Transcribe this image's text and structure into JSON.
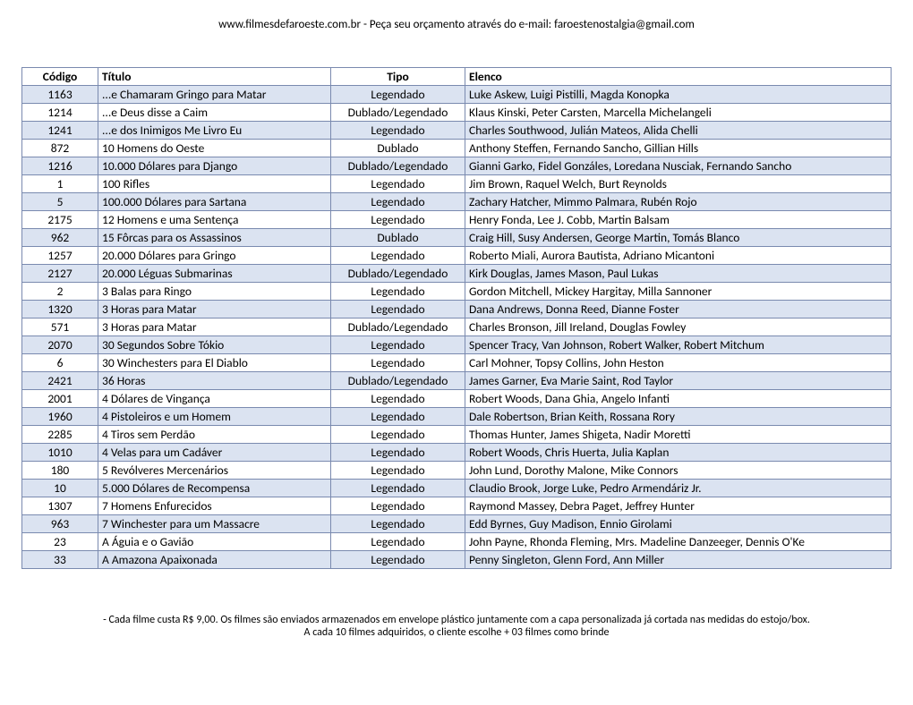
{
  "header": "www.filmesdefaroeste.com.br - Peça seu orçamento através do e-mail: faroestenostalgia@gmail.com",
  "columns": [
    "Código",
    "Título",
    "Tipo",
    "Elenco"
  ],
  "col_classes": [
    "col-codigo",
    "col-titulo",
    "col-tipo",
    "col-elenco"
  ],
  "row_colors": {
    "odd": "#dbe3f1",
    "even": "#ffffff"
  },
  "border_color": "#7a8aaf",
  "font_family": "Calibri",
  "rows": [
    [
      "1163",
      "...e Chamaram Gringo para Matar",
      "Legendado",
      "Luke Askew, Luigi Pistilli, Magda Konopka"
    ],
    [
      "1214",
      "...e Deus disse a Caim",
      "Dublado/Legendado",
      "Klaus Kinski, Peter Carsten, Marcella Michelangeli"
    ],
    [
      "1241",
      "...e dos Inimigos Me Livro Eu",
      "Legendado",
      "Charles Southwood, Julián Mateos, Alida Chelli"
    ],
    [
      "872",
      "10 Homens do Oeste",
      "Dublado",
      "Anthony Steffen, Fernando Sancho, Gillian Hills"
    ],
    [
      "1216",
      "10.000 Dólares para Django",
      "Dublado/Legendado",
      "Gianni Garko, Fidel Gonzáles, Loredana Nusciak, Fernando Sancho"
    ],
    [
      "1",
      "100 Rifles",
      "Legendado",
      "Jim Brown, Raquel Welch, Burt Reynolds"
    ],
    [
      "5",
      "100.000 Dólares para Sartana",
      "Legendado",
      "Zachary Hatcher, Mimmo Palmara, Rubén Rojo"
    ],
    [
      "2175",
      "12 Homens e uma Sentença",
      "Legendado",
      "Henry Fonda, Lee J. Cobb, Martin Balsam"
    ],
    [
      "962",
      "15 Fôrcas para os Assassinos",
      "Dublado",
      "Craig Hill, Susy Andersen, George Martin, Tomás Blanco"
    ],
    [
      "1257",
      "20.000 Dólares para Gringo",
      "Legendado",
      "Roberto Miali, Aurora Bautista, Adriano Micantoni"
    ],
    [
      "2127",
      "20.000 Léguas Submarinas",
      "Dublado/Legendado",
      "Kirk Douglas, James Mason, Paul Lukas"
    ],
    [
      "2",
      "3 Balas para Ringo",
      "Legendado",
      "Gordon Mitchell, Mickey Hargitay, Milla Sannoner"
    ],
    [
      "1320",
      "3 Horas para Matar",
      "Legendado",
      "Dana Andrews, Donna Reed, Dianne Foster"
    ],
    [
      "571",
      "3 Horas para Matar",
      "Dublado/Legendado",
      "Charles Bronson, Jill Ireland, Douglas Fowley"
    ],
    [
      "2070",
      "30 Segundos Sobre Tókio",
      "Legendado",
      "Spencer Tracy, Van Johnson, Robert Walker, Robert Mitchum"
    ],
    [
      "6",
      "30 Winchesters para El Diablo",
      "Legendado",
      "Carl Mohner, Topsy Collins, John Heston"
    ],
    [
      "2421",
      "36 Horas",
      "Dublado/Legendado",
      "James Garner, Eva Marie Saint, Rod Taylor"
    ],
    [
      "2001",
      "4 Dólares de Vingança",
      "Legendado",
      "Robert Woods, Dana Ghia, Angelo Infanti"
    ],
    [
      "1960",
      "4 Pistoleiros e um Homem",
      "Legendado",
      "Dale Robertson, Brian Keith, Rossana Rory"
    ],
    [
      "2285",
      "4 Tiros sem Perdão",
      "Legendado",
      "Thomas Hunter, James Shigeta, Nadir Moretti"
    ],
    [
      "1010",
      "4 Velas para um Cadáver",
      "Legendado",
      "Robert Woods, Chris Huerta, Julia Kaplan"
    ],
    [
      "180",
      "5 Revólveres Mercenários",
      "Legendado",
      "John Lund, Dorothy Malone, Mike Connors"
    ],
    [
      "10",
      "5.000 Dólares de Recompensa",
      "Legendado",
      "Claudio Brook, Jorge Luke, Pedro Armendáriz Jr."
    ],
    [
      "1307",
      "7 Homens Enfurecidos",
      "Legendado",
      "Raymond Massey, Debra Paget, Jeffrey Hunter"
    ],
    [
      "963",
      "7 Winchester para um Massacre",
      "Legendado",
      "Edd Byrnes, Guy Madison, Ennio Girolami"
    ],
    [
      "23",
      "A Águia e o Gavião",
      "Legendado",
      "John Payne, Rhonda Fleming, Mrs. Madeline Danzeeger, Dennis O'Ke"
    ],
    [
      "33",
      "A Amazona Apaixonada",
      "Legendado",
      "Penny Singleton, Glenn Ford, Ann Miller"
    ]
  ],
  "footer": {
    "line1": "- Cada filme custa R$ 9,00. Os filmes são enviados armazenados em envelope plástico juntamente com a capa personalizada já cortada nas medidas do estojo/box.",
    "line2": "A cada 10 filmes adquiridos, o cliente escolhe + 03 filmes como brinde"
  }
}
